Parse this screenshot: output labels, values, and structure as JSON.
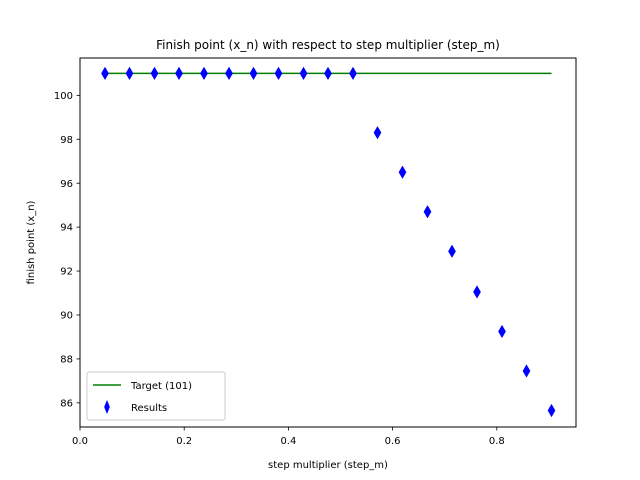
{
  "chart_data": {
    "type": "scatter",
    "title": "Finish point (x_n) with respect to step multiplier (step_m)",
    "xlabel": "step multiplier (step_m)",
    "ylabel": "finish point (x_n)",
    "xlim": [
      0.0,
      0.952
    ],
    "ylim": [
      84.9,
      101.7
    ],
    "xticks": [
      0.0,
      0.2,
      0.4,
      0.6,
      0.8
    ],
    "xtick_labels": [
      "0.0",
      "0.2",
      "0.4",
      "0.6",
      "0.8"
    ],
    "yticks": [
      86,
      88,
      90,
      92,
      94,
      96,
      98,
      100
    ],
    "ytick_labels": [
      "86",
      "88",
      "90",
      "92",
      "94",
      "96",
      "98",
      "100"
    ],
    "grid": false,
    "legend_position": "lower-left",
    "series": [
      {
        "name": "Target (101)",
        "kind": "line",
        "color": "#008000",
        "x": [
          0.048,
          0.905
        ],
        "y": [
          101,
          101
        ]
      },
      {
        "name": "Results",
        "kind": "scatter",
        "marker": "thin-diamond",
        "color": "#0000ff",
        "x": [
          0.048,
          0.095,
          0.143,
          0.19,
          0.238,
          0.286,
          0.333,
          0.381,
          0.429,
          0.476,
          0.524,
          0.571,
          0.619,
          0.667,
          0.714,
          0.762,
          0.81,
          0.857,
          0.905
        ],
        "y": [
          101,
          101,
          101,
          101,
          101,
          101,
          101,
          101,
          101,
          101,
          101,
          98.3,
          96.5,
          94.7,
          92.9,
          91.05,
          89.25,
          87.45,
          85.65
        ]
      }
    ]
  }
}
